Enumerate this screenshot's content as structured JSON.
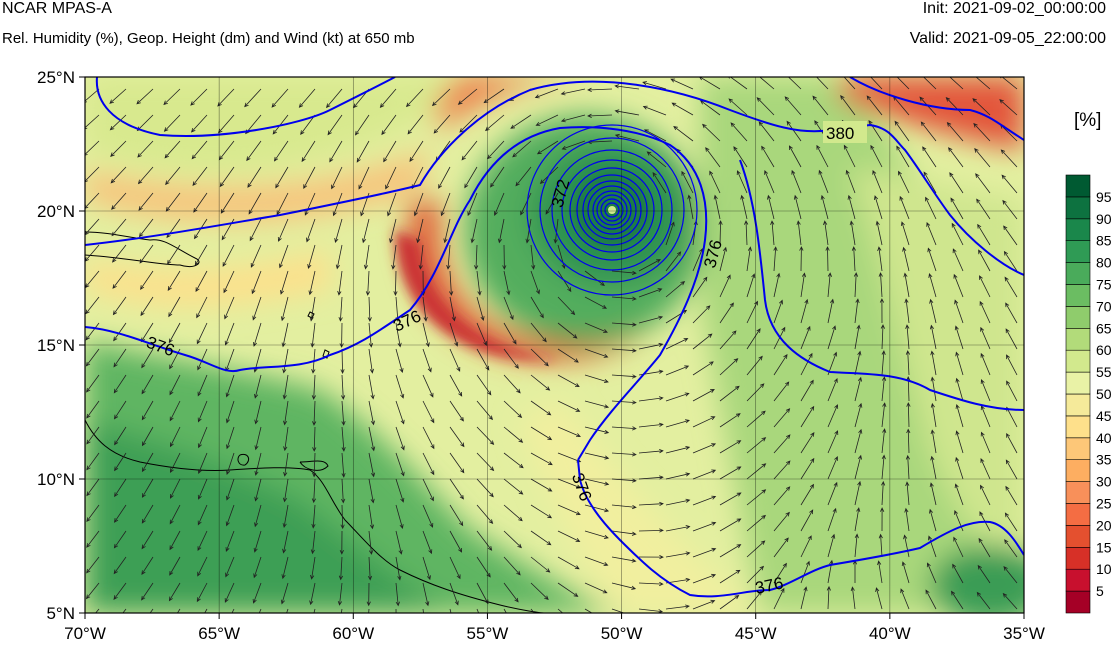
{
  "header": {
    "model": "NCAR MPAS-A",
    "subtitle": "Rel. Humidity (%), Geop. Height (dm) and Wind (kt) at 650 mb",
    "init": "Init: 2021-09-02_00:00:00",
    "valid": "Valid: 2021-09-05_22:00:00"
  },
  "map": {
    "lon_range": [
      -70,
      -35
    ],
    "lat_range": [
      5,
      25
    ],
    "lon_ticks": [
      "70°W",
      "65°W",
      "60°W",
      "55°W",
      "50°W",
      "45°W",
      "40°W",
      "35°W"
    ],
    "lat_ticks": [
      "5°N",
      "10°N",
      "15°N",
      "20°N",
      "25°N"
    ],
    "grid": true
  },
  "colorbar": {
    "unit": "[%]",
    "labels": [
      "5",
      "10",
      "15",
      "20",
      "25",
      "30",
      "35",
      "40",
      "45",
      "50",
      "55",
      "60",
      "65",
      "70",
      "75",
      "80",
      "85",
      "90",
      "95"
    ],
    "colors": [
      "#a50026",
      "#c8102e",
      "#d73027",
      "#e4502f",
      "#f46d43",
      "#f8905a",
      "#fdae61",
      "#fdc778",
      "#fee08b",
      "#f5ea9a",
      "#e9f2a6",
      "#d2e98d",
      "#b2db7a",
      "#8fcc6c",
      "#6bbd62",
      "#4aab5b",
      "#2f9b55",
      "#1a874b",
      "#0d7240",
      "#005a32"
    ]
  },
  "contours": {
    "color": "#0000ee",
    "labels": [
      "380",
      "372",
      "376",
      "376",
      "376",
      "376",
      "376"
    ]
  },
  "hurricane_center": {
    "lon": -50.3,
    "lat": 20.1
  }
}
